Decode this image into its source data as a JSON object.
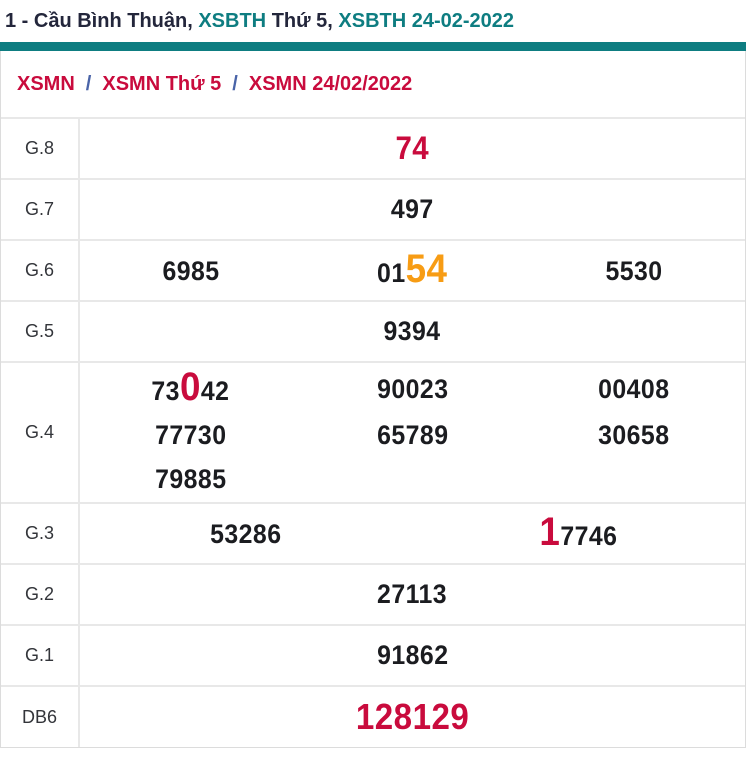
{
  "title": {
    "part1": "1 - Cầu Bình Thuận, ",
    "link1": "XSBTH",
    "part2": " Thứ 5, ",
    "link2": "XSBTH 24-02-2022"
  },
  "breadcrumb": {
    "separator": "/",
    "items": [
      "XSMN",
      "XSMN Thứ 5",
      "XSMN 24/02/2022"
    ]
  },
  "colors": {
    "accent_teal": "#0e7d81",
    "accent_red": "#c90b3d",
    "accent_orange": "#f79c14",
    "separator_blue": "#4a64a8",
    "number_black": "#1b1c20",
    "border_gray": "#e8e8e8"
  },
  "results": {
    "g8": {
      "label": "G.8",
      "numbers": [
        {
          "value": "74"
        }
      ]
    },
    "g7": {
      "label": "G.7",
      "numbers": [
        {
          "value": "497"
        }
      ]
    },
    "g6": {
      "label": "G.6",
      "numbers": [
        {
          "value": "6985"
        },
        {
          "pre": "01",
          "hi": "54",
          "post": "",
          "hi_color": "orange"
        },
        {
          "value": "5530"
        }
      ]
    },
    "g5": {
      "label": "G.5",
      "numbers": [
        {
          "value": "9394"
        }
      ]
    },
    "g4": {
      "label": "G.4",
      "numbers": [
        {
          "pre": "73",
          "hi": "0",
          "post": "42",
          "hi_color": "red"
        },
        {
          "value": "90023"
        },
        {
          "value": "00408"
        },
        {
          "value": "77730"
        },
        {
          "value": "65789"
        },
        {
          "value": "30658"
        },
        {
          "value": "79885"
        }
      ]
    },
    "g3": {
      "label": "G.3",
      "numbers": [
        {
          "value": "53286"
        },
        {
          "pre": "",
          "hi": "1",
          "post": "7746",
          "hi_color": "red"
        }
      ]
    },
    "g2": {
      "label": "G.2",
      "numbers": [
        {
          "value": "27113"
        }
      ]
    },
    "g1": {
      "label": "G.1",
      "numbers": [
        {
          "value": "91862"
        }
      ]
    },
    "db6": {
      "label": "DB6",
      "numbers": [
        {
          "value": "128129"
        }
      ]
    }
  }
}
